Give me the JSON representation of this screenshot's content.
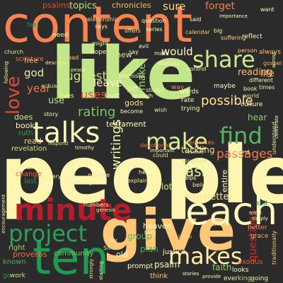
{
  "cloud": {
    "words": [
      {
        "text": "people",
        "color": "#fef6b0"
      },
      {
        "text": "like",
        "color": "#c4e68a"
      },
      {
        "text": "content",
        "color": "#f6834f"
      },
      {
        "text": "give",
        "color": "#fdc979"
      },
      {
        "text": "ten",
        "color": "#1b9c51"
      },
      {
        "text": "each",
        "color": "#fffbbe"
      },
      {
        "text": "minute",
        "color": "#b61d2b"
      },
      {
        "text": "talks",
        "color": "#f9f7bc"
      },
      {
        "text": "project",
        "color": "#2e9f59"
      },
      {
        "text": "makes",
        "color": "#feeda3"
      },
      {
        "text": "make",
        "color": "#ddf09b"
      },
      {
        "text": "find",
        "color": "#52b567"
      },
      {
        "text": "share",
        "color": "#cde98f"
      },
      {
        "text": "love",
        "color": "#e34a33"
      },
      {
        "text": "passages",
        "color": "#f47c4b"
      },
      {
        "text": "newsletter",
        "color": "#fde592"
      },
      {
        "text": "possible",
        "color": "#fee392"
      },
      {
        "text": "reading",
        "color": "#fdba6f"
      },
      {
        "text": "rating",
        "color": "#7fc466"
      },
      {
        "text": "suggest",
        "color": "#c6e47f"
      },
      {
        "text": "writings",
        "color": "#f3faae"
      },
      {
        "text": "leave",
        "color": "#fcfdbc"
      },
      {
        "text": "ask",
        "color": "#e7f5a6"
      },
      {
        "text": "would",
        "color": "#fffcc0"
      },
      {
        "text": "uses",
        "color": "#e75636"
      },
      {
        "text": "god",
        "color": "#e0f29c"
      },
      {
        "text": "year",
        "color": "#f47345"
      },
      {
        "text": "use",
        "color": "#c4e48a"
      },
      {
        "text": "questions",
        "color": "#d02927"
      },
      {
        "text": "makes",
        "color": "#a0d669"
      },
      {
        "text": "topics",
        "color": "#c0e383"
      },
      {
        "text": "sure",
        "color": "#fdd583"
      },
      {
        "text": "forget",
        "color": "#f67d49"
      },
      {
        "text": "chronicles",
        "color": "#fbbc6a"
      },
      {
        "text": "psalms",
        "color": "#e34933"
      },
      {
        "text": "tackling",
        "color": "#fed98a"
      },
      {
        "text": "testament",
        "color": "#fffbb8"
      },
      {
        "text": "hear",
        "color": "#8dce6c"
      },
      {
        "text": "life",
        "color": "#fdb366"
      },
      {
        "text": "group",
        "color": "#54b163"
      },
      {
        "text": "plan",
        "color": "#4bac5c"
      },
      {
        "text": "faith",
        "color": "#8fcf69"
      },
      {
        "text": "psalm",
        "color": "#fff7b0"
      },
      {
        "text": "proverbs",
        "color": "#f26d43"
      },
      {
        "text": "community",
        "color": "#7bc264"
      },
      {
        "text": "entire",
        "color": "#f9fbb5"
      },
      {
        "text": "books",
        "color": "#f7fab4"
      },
      {
        "text": "ruth",
        "color": "#36a153"
      },
      {
        "text": "does",
        "color": "#d5ee94"
      },
      {
        "text": "read",
        "color": "#fdd07d"
      },
      {
        "text": "revelation",
        "color": "#c7e786"
      },
      {
        "text": "care",
        "color": "#fffab8"
      },
      {
        "text": "change",
        "color": "#ef6141"
      },
      {
        "text": "last",
        "color": "#1f974f"
      },
      {
        "text": "heaven",
        "color": "#fdfebe"
      },
      {
        "text": "lot",
        "color": "#cde98f"
      },
      {
        "text": "old",
        "color": "#f9fcb6"
      },
      {
        "text": "prompt",
        "color": "#fffbc0"
      },
      {
        "text": "justice",
        "color": "#ffffbe"
      },
      {
        "text": "sin",
        "color": "#bde283"
      },
      {
        "text": "known",
        "color": "#4bad5b"
      },
      {
        "text": "right",
        "color": "#a5d86c"
      },
      {
        "text": "work",
        "color": "#c5e583"
      },
      {
        "text": "go",
        "color": "#2e9b55"
      },
      {
        "text": "think",
        "color": "#fdc776"
      },
      {
        "text": "looks",
        "color": "#fffcc0"
      },
      {
        "text": "ever",
        "color": "#fef0a7"
      },
      {
        "text": "king",
        "color": "#b2dd76"
      },
      {
        "text": "going",
        "color": "#f0f9ab"
      },
      {
        "text": "exodus",
        "color": "#e75c3a"
      },
      {
        "text": "better",
        "color": "#f88f53"
      },
      {
        "text": "grace",
        "color": "#fdad61"
      },
      {
        "text": "feel",
        "color": "#1a9850"
      },
      {
        "text": "need",
        "color": "#f1f9ac"
      },
      {
        "text": "scripture",
        "color": "#f57748"
      },
      {
        "text": "church",
        "color": "#d8ef97"
      },
      {
        "text": "hope",
        "color": "#f7fbb2"
      },
      {
        "text": "new",
        "color": "#d4ee95"
      },
      {
        "text": "gods",
        "color": "#fee08b"
      },
      {
        "text": "trust",
        "color": "#fff5b1"
      },
      {
        "text": "lives",
        "color": "#fef2a6"
      },
      {
        "text": "free",
        "color": "#fdb466"
      },
      {
        "text": "actually",
        "color": "#c1e280"
      },
      {
        "text": "way",
        "color": "#f0935a"
      },
      {
        "text": "culture",
        "color": "#fffcc0"
      },
      {
        "text": "maybe",
        "color": "#fffebe"
      },
      {
        "text": "words",
        "color": "#fffbbc"
      },
      {
        "text": "rate",
        "color": "#fffbbc"
      },
      {
        "text": "trying",
        "color": "#eef7a9"
      },
      {
        "text": "different",
        "color": "#f4faac"
      },
      {
        "text": "always",
        "color": "#fdbf6f"
      },
      {
        "text": "gospel",
        "color": "#fdae61"
      },
      {
        "text": "world",
        "color": "#cde98f"
      },
      {
        "text": "times",
        "color": "#e9f5a3"
      },
      {
        "text": "resources",
        "color": "#f57a49"
      },
      {
        "text": "devotional",
        "color": "#f46d43"
      },
      {
        "text": "kingdom",
        "color": "#cbe88c"
      },
      {
        "text": "helps",
        "color": "#fdfebe"
      },
      {
        "text": "believe",
        "color": "#feeca2"
      },
      {
        "text": "still",
        "color": "#1a9850"
      },
      {
        "text": "mark",
        "color": "#f8f9b0"
      },
      {
        "text": "say",
        "color": "#fff9bb"
      },
      {
        "text": "study",
        "color": "#fef1a6"
      },
      {
        "text": "jeff",
        "color": "#e9f6a3"
      },
      {
        "text": "enough",
        "color": "#f7fcb2"
      },
      {
        "text": "wish",
        "color": "#e7f5a3"
      },
      {
        "text": "discuss",
        "color": "#fff2aa"
      },
      {
        "text": "control",
        "color": "#eaf6a5"
      },
      {
        "text": "promises",
        "color": "#f4fab0"
      },
      {
        "text": "could",
        "color": "#fdd884"
      },
      {
        "text": "heart",
        "color": "#f9fcb5"
      },
      {
        "text": "explain",
        "color": "#fee795"
      },
      {
        "text": "first",
        "color": "#fefebe"
      },
      {
        "text": "prepare",
        "color": "#feebaa"
      },
      {
        "text": "something",
        "color": "#ecf7a7"
      },
      {
        "text": "one",
        "color": "#fffabe"
      },
      {
        "text": "numbers",
        "color": "#fde08b"
      },
      {
        "text": "everything",
        "color": "#eef8a9"
      },
      {
        "text": "relationship",
        "color": "#fed28a"
      },
      {
        "text": "question",
        "color": "#f9fcb5"
      },
      {
        "text": "series",
        "color": "#f5fbb0"
      },
      {
        "text": "calendar",
        "color": "#fdc676"
      },
      {
        "text": "reflect",
        "color": "#fdfebc"
      },
      {
        "text": "want",
        "color": "#fffbb8"
      },
      {
        "text": "importance",
        "color": "#ffffbe"
      },
      {
        "text": "said",
        "color": "#fdfdbc"
      },
      {
        "text": "big",
        "color": "#f5faae"
      },
      {
        "text": "suffering",
        "color": "#fdd486"
      },
      {
        "text": "offers",
        "color": "#fee18e"
      },
      {
        "text": "says",
        "color": "#fcfdba"
      },
      {
        "text": "might",
        "color": "#eef7aa"
      },
      {
        "text": "evil",
        "color": "#f9fcb6"
      },
      {
        "text": "understand",
        "color": "#d7ee97"
      },
      {
        "text": "lead",
        "color": "#fdd281"
      },
      {
        "text": "describe",
        "color": "#fee491"
      },
      {
        "text": "peace",
        "color": "#f5fab0"
      },
      {
        "text": "person",
        "color": "#fdcd7d"
      },
      {
        "text": "book",
        "color": "#fffcc0"
      },
      {
        "text": "following",
        "color": "#edf8a8"
      },
      {
        "text": "story",
        "color": "#f6fbb2"
      },
      {
        "text": "respond",
        "color": "#fce08d"
      },
      {
        "text": "timothy",
        "color": "#f9fcb5"
      },
      {
        "text": "become",
        "color": "#f8fcb4"
      },
      {
        "text": "important",
        "color": "#fffcc0"
      },
      {
        "text": "receive",
        "color": "#f1f9ac"
      },
      {
        "text": "around",
        "color": "#f8fcb4"
      },
      {
        "text": "celebrate",
        "color": "#fffcc0"
      },
      {
        "text": "encouragement",
        "color": "#eaf6a5"
      },
      {
        "text": "genesis",
        "color": "#fee795"
      },
      {
        "text": "things",
        "color": "#fdfebc"
      },
      {
        "text": "traditionally",
        "color": "#fdcd7d"
      },
      {
        "text": "starting",
        "color": "#feeda3"
      },
      {
        "text": "strongly",
        "color": "#fde390"
      },
      {
        "text": "joy",
        "color": "#fff8b4"
      },
      {
        "text": "back",
        "color": "#f9fcb6"
      },
      {
        "text": "listen",
        "color": "#fdd281"
      },
      {
        "text": "stories",
        "color": "#fcfdba"
      },
      {
        "text": "provide",
        "color": "#fff5b1"
      },
      {
        "text": "mind",
        "color": "#eaf6a5"
      },
      {
        "text": "simply",
        "color": "#f8fcb4"
      },
      {
        "text": "made",
        "color": "#fdd07d"
      },
      {
        "text": "across",
        "color": "#f1f9ac"
      }
    ]
  }
}
